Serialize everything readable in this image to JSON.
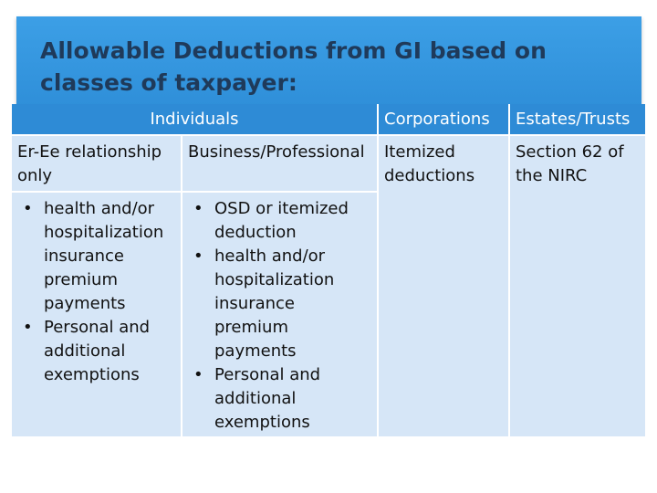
{
  "slide": {
    "title": "Allowable Deductions from GI based on classes of taxpayer:"
  },
  "table": {
    "headers": {
      "individuals": "Individuals",
      "corporations": "Corporations",
      "estates": "Estates/Trusts"
    },
    "row1": {
      "c1": "Er-Ee relationship only",
      "c2": "Business/Professional",
      "c3": "Itemized deductions",
      "c4": "Section 62 of the NIRC"
    },
    "row2": {
      "c1_items": [
        "health and/or hospitalization insurance premium payments",
        "Personal and additional exemptions"
      ],
      "c2_items": [
        "OSD or itemized deduction",
        "health and/or hospitalization insurance premium payments",
        "Personal and additional exemptions"
      ]
    }
  },
  "colors": {
    "header": "#2e8bd6",
    "cell": "#d6e6f7",
    "title_bar": "#3c9fe6",
    "title_text": "#1f3a5a"
  }
}
